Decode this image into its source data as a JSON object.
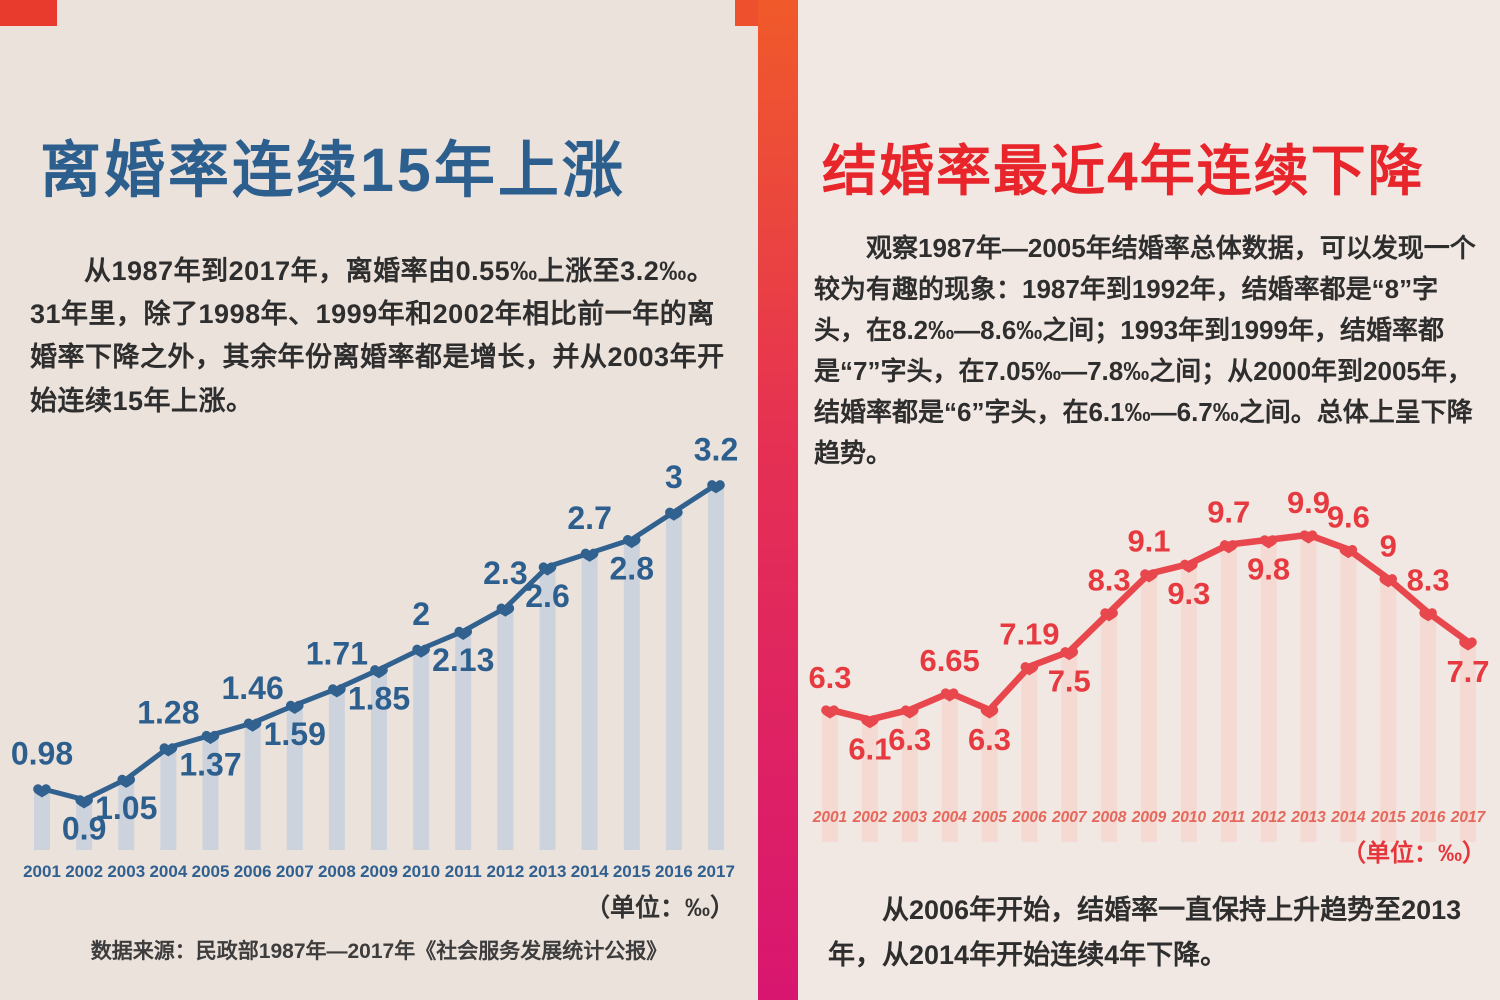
{
  "left_panel": {
    "title": "离婚率连续15年上涨",
    "paragraph": "从1987年到2017年，离婚率由0.55‰上涨至3.2‰。31年里，除了1998年、1999年和2002年相比前一年的离婚率下降之外，其余年份离婚率都是增长，并从2003年开始连续15年上涨。",
    "unit_label": "（单位：‰）",
    "source": "数据来源：民政部1987年—2017年《社会服务发展统计公报》"
  },
  "right_panel": {
    "title": "结婚率最近4年连续下降",
    "paragraph_segments": [
      {
        "text": "观察",
        "bold": false
      },
      {
        "text": "1987年—2005年结婚率总体数据",
        "bold": true
      },
      {
        "text": "，可以发现一个较为有趣的现象：1987年到1992年，结婚率都是“8”字头，在8.2‰—8.6‰之间；1993年到1999年，结婚率都是“7”字头，在7.05‰—7.8‰之间；从2000年到2005年，结婚率都是“6”字头，在6.1‰—6.7‰之间。",
        "bold": false
      },
      {
        "text": "总体上呈下降趋势。",
        "bold": true
      }
    ],
    "unit_label": "（单位：‰）",
    "footer_segments": [
      {
        "text": "从2006年开始，结婚率一直保持上升趋势至2013年，",
        "bold": false
      },
      {
        "text": "从2014年开始连续4年下降。",
        "bold": true
      }
    ]
  },
  "colors": {
    "left_background": "#ece2dc",
    "right_background": "#f2e8e3",
    "left_title": "#2d5f8e",
    "right_title": "#e7252b",
    "divider_top": "#f05a2a",
    "divider_bottom": "#d81670",
    "corner_accent": "#e93b2d"
  },
  "chart_data": [
    {
      "type": "line",
      "title": "离婚率 2001—2017（‰）",
      "categories": [
        "2001",
        "2002",
        "2003",
        "2004",
        "2005",
        "2006",
        "2007",
        "2008",
        "2009",
        "2010",
        "2011",
        "2012",
        "2013",
        "2014",
        "2015",
        "2016",
        "2017"
      ],
      "values": [
        0.98,
        0.9,
        1.05,
        1.28,
        1.37,
        1.46,
        1.59,
        1.71,
        1.85,
        2,
        2.13,
        2.3,
        2.6,
        2.7,
        2.8,
        3,
        3.2
      ],
      "label_side": [
        "up",
        "down",
        "down",
        "up",
        "down",
        "up",
        "down",
        "up",
        "down",
        "up",
        "down",
        "up",
        "down",
        "up",
        "down",
        "up",
        "up"
      ],
      "unit": "‰",
      "xlabel": "",
      "ylabel": "‰",
      "ylim": [
        0,
        3.6
      ],
      "grid": false,
      "legend": "none",
      "line_color": "#31618f",
      "bar_color": "#c6cfdd",
      "label_color": "#2d5f8e",
      "year_color": "#30608f"
    },
    {
      "type": "line",
      "title": "结婚率 2001—2017（‰）",
      "categories": [
        "2001",
        "2002",
        "2003",
        "2004",
        "2005",
        "2006",
        "2007",
        "2008",
        "2009",
        "2010",
        "2011",
        "2012",
        "2013",
        "2014",
        "2015",
        "2016",
        "2017"
      ],
      "values": [
        6.3,
        6.1,
        6.3,
        6.65,
        6.3,
        7.19,
        7.5,
        8.3,
        9.1,
        9.3,
        9.7,
        9.8,
        9.9,
        9.6,
        9,
        8.3,
        7.7
      ],
      "label_side": [
        "up",
        "down",
        "down",
        "up",
        "down",
        "up",
        "down",
        "up",
        "up",
        "down",
        "up",
        "down",
        "up",
        "up",
        "up",
        "up",
        "down"
      ],
      "unit": "‰",
      "xlabel": "",
      "ylabel": "‰",
      "ylim": [
        4.5,
        10.5
      ],
      "grid": false,
      "legend": "none",
      "line_color": "#e8474d",
      "bar_color": "#f6d6d0",
      "label_color": "#e63a40",
      "year_color": "#e4685c"
    }
  ]
}
